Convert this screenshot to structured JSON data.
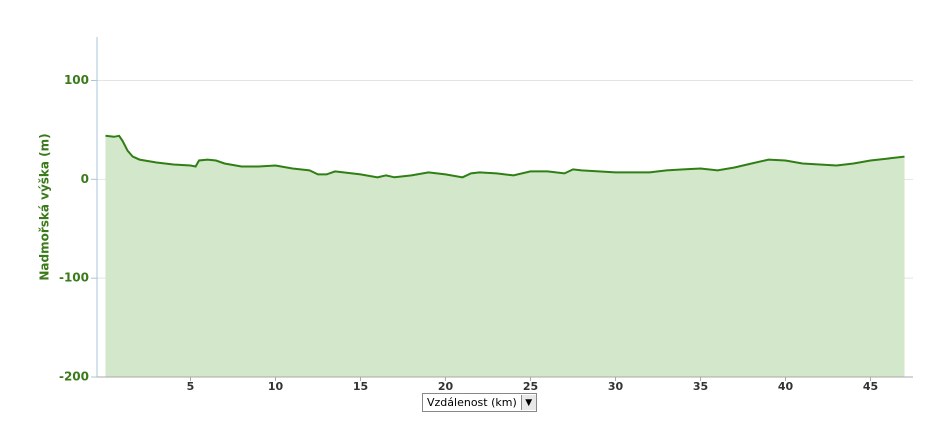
{
  "chart_data": {
    "type": "area",
    "y_label": "Nadmořská výška (m)",
    "x_label": "Vzdálenost (km)",
    "x": [
      0,
      0.5,
      0.8,
      1.0,
      1.3,
      1.6,
      2,
      3,
      4,
      5,
      5.3,
      5.5,
      6,
      6.5,
      7,
      8,
      9,
      10,
      11,
      12,
      12.5,
      13,
      13.5,
      14,
      15,
      16,
      16.5,
      17,
      18,
      19,
      20,
      21,
      21.5,
      22,
      23,
      24,
      25,
      26,
      27,
      27.5,
      28,
      29,
      30,
      31,
      32,
      33,
      34,
      35,
      36,
      37,
      38,
      39,
      40,
      41,
      42,
      43,
      44,
      45,
      46,
      47
    ],
    "series": [
      {
        "color": "#2f7f14",
        "fill": "#d3e7cb",
        "values": [
          44,
          43,
          44,
          39,
          29,
          23,
          20,
          17,
          15,
          14,
          13,
          19,
          20,
          19,
          16,
          13,
          13,
          14,
          11,
          9,
          5,
          5,
          8,
          7,
          5,
          2,
          4,
          2,
          4,
          7,
          5,
          2,
          6,
          7,
          6,
          4,
          8,
          8,
          6,
          10,
          9,
          8,
          7,
          7,
          7,
          9,
          10,
          11,
          9,
          12,
          16,
          20,
          19,
          16,
          15,
          14,
          16,
          19,
          21,
          23
        ]
      }
    ],
    "xlim": [
      -0.5,
      47.5
    ],
    "ylim": [
      -200,
      144
    ],
    "xticks": [
      5,
      10,
      15,
      20,
      25,
      30,
      35,
      40,
      45
    ],
    "yticks": [
      -200,
      -100,
      0,
      100
    ],
    "grid": true
  }
}
